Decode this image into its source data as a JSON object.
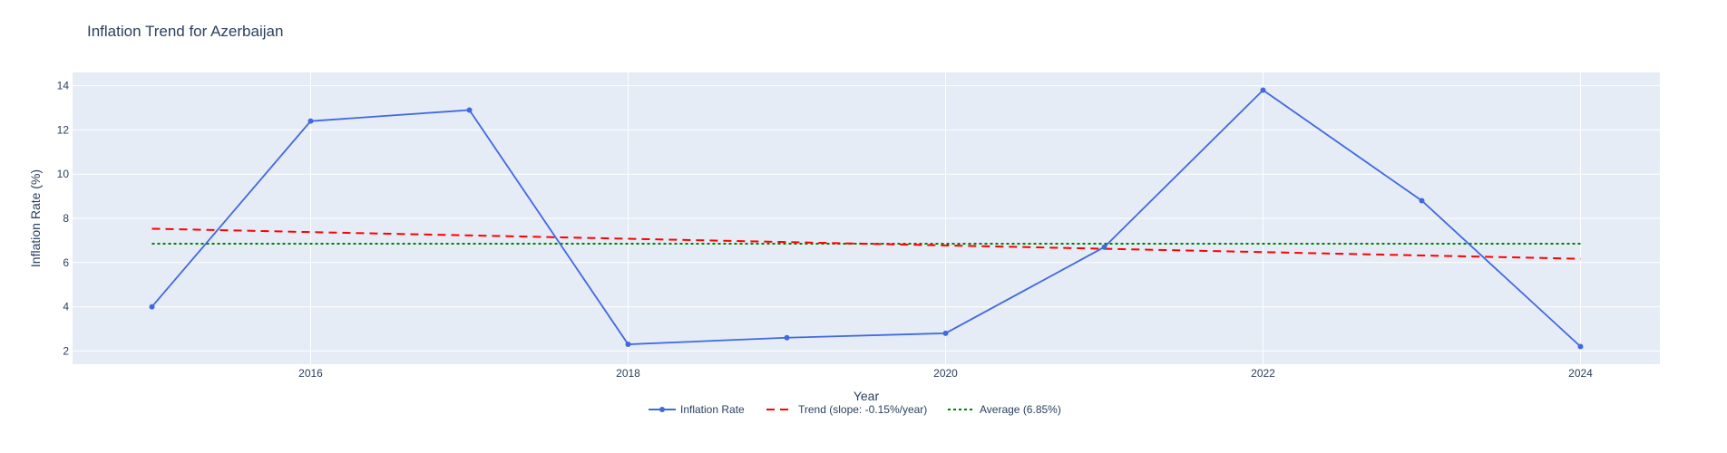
{
  "chart_data": {
    "type": "line",
    "title": "Inflation Trend for Azerbaijan",
    "xlabel": "Year",
    "ylabel": "Inflation Rate (%)",
    "xlim": [
      2014.5,
      2024.5
    ],
    "ylim": [
      1.4,
      14.6
    ],
    "x_ticks": [
      2016,
      2018,
      2020,
      2022,
      2024
    ],
    "y_ticks": [
      2,
      4,
      6,
      8,
      10,
      12,
      14
    ],
    "grid": true,
    "legend_position": "bottom-center",
    "x": [
      2015,
      2016,
      2017,
      2018,
      2019,
      2020,
      2021,
      2022,
      2023,
      2024
    ],
    "series": [
      {
        "name": "Inflation Rate",
        "style": "lines+markers",
        "color": "#4169e1",
        "x": [
          2015,
          2016,
          2017,
          2018,
          2019,
          2020,
          2021,
          2022,
          2023,
          2024
        ],
        "values": [
          4.0,
          12.4,
          12.9,
          2.3,
          2.6,
          2.8,
          6.7,
          13.8,
          8.8,
          2.2
        ]
      },
      {
        "name": "Trend (slope: -0.15%/year)",
        "style": "dash",
        "color": "#ff0000",
        "x": [
          2015,
          2024
        ],
        "values": [
          7.53,
          6.17
        ]
      },
      {
        "name": "Average (6.85%)",
        "style": "dot",
        "color": "#008000",
        "x": [
          2015,
          2024
        ],
        "values": [
          6.85,
          6.85
        ]
      }
    ]
  }
}
